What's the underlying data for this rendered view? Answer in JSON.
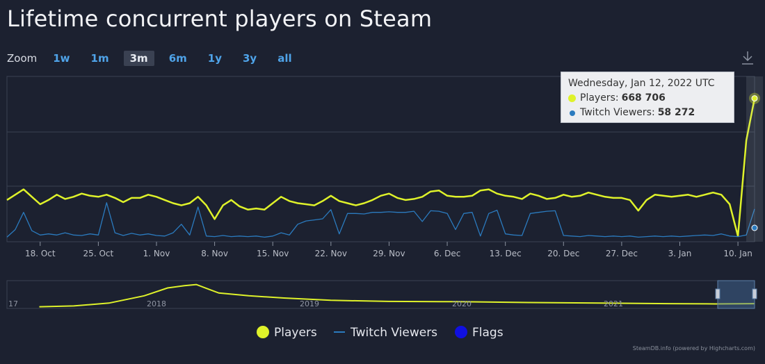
{
  "title": "Lifetime concurrent players on Steam",
  "zoom": {
    "label": "Zoom",
    "buttons": [
      "1w",
      "1m",
      "3m",
      "6m",
      "1y",
      "3y",
      "all"
    ],
    "active": "3m"
  },
  "download_icon": "download-icon",
  "tooltip": {
    "date": "Wednesday, Jan 12, 2022 UTC",
    "players_label": "Players:",
    "players_value": "668 706",
    "twitch_label": "Twitch Viewers:",
    "twitch_value": "58 272"
  },
  "credit": "SteamDB.info (powered by Highcharts.com)",
  "colors": {
    "players": "#dff22a",
    "twitch": "#2b7bbf",
    "flags": "#1010e0",
    "background": "#1c2130",
    "grid": "#3a4152"
  },
  "chart_data": [
    {
      "type": "line",
      "title": "Lifetime concurrent players on Steam",
      "x_axis": {
        "type": "date",
        "range": [
          "2021-10-14",
          "2022-01-12"
        ],
        "ticks": [
          {
            "date": "2021-10-18",
            "label": "18. Oct"
          },
          {
            "date": "2021-10-25",
            "label": "25. Oct"
          },
          {
            "date": "2021-11-01",
            "label": "1. Nov"
          },
          {
            "date": "2021-11-08",
            "label": "8. Nov"
          },
          {
            "date": "2021-11-15",
            "label": "15. Nov"
          },
          {
            "date": "2021-11-22",
            "label": "22. Nov"
          },
          {
            "date": "2021-11-29",
            "label": "29. Nov"
          },
          {
            "date": "2021-12-06",
            "label": "6. Dec"
          },
          {
            "date": "2021-12-13",
            "label": "13. Dec"
          },
          {
            "date": "2021-12-20",
            "label": "20. Dec"
          },
          {
            "date": "2021-12-27",
            "label": "27. Dec"
          },
          {
            "date": "2022-01-03",
            "label": "3. Jan"
          },
          {
            "date": "2022-01-10",
            "label": "10. Jan"
          }
        ]
      },
      "grid": true,
      "legend_position": "bottom-center",
      "series": [
        {
          "name": "Players",
          "color": "#dff22a",
          "points": [
            [
              "2021-10-14",
              190000
            ],
            [
              "2021-10-15",
              215000
            ],
            [
              "2021-10-16",
              240000
            ],
            [
              "2021-10-17",
              205000
            ],
            [
              "2021-10-18",
              170000
            ],
            [
              "2021-10-19",
              190000
            ],
            [
              "2021-10-20",
              215000
            ],
            [
              "2021-10-21",
              195000
            ],
            [
              "2021-10-22",
              205000
            ],
            [
              "2021-10-23",
              220000
            ],
            [
              "2021-10-24",
              210000
            ],
            [
              "2021-10-25",
              205000
            ],
            [
              "2021-10-26",
              215000
            ],
            [
              "2021-10-27",
              200000
            ],
            [
              "2021-10-28",
              180000
            ],
            [
              "2021-10-29",
              200000
            ],
            [
              "2021-10-30",
              200000
            ],
            [
              "2021-10-31",
              215000
            ],
            [
              "2021-11-01",
              205000
            ],
            [
              "2021-11-02",
              190000
            ],
            [
              "2021-11-03",
              175000
            ],
            [
              "2021-11-04",
              165000
            ],
            [
              "2021-11-05",
              175000
            ],
            [
              "2021-11-06",
              205000
            ],
            [
              "2021-11-07",
              165000
            ],
            [
              "2021-11-08",
              100000
            ],
            [
              "2021-11-09",
              165000
            ],
            [
              "2021-11-10",
              190000
            ],
            [
              "2021-11-11",
              160000
            ],
            [
              "2021-11-12",
              145000
            ],
            [
              "2021-11-13",
              150000
            ],
            [
              "2021-11-14",
              145000
            ],
            [
              "2021-11-15",
              175000
            ],
            [
              "2021-11-16",
              205000
            ],
            [
              "2021-11-17",
              185000
            ],
            [
              "2021-11-18",
              175000
            ],
            [
              "2021-11-19",
              170000
            ],
            [
              "2021-11-20",
              165000
            ],
            [
              "2021-11-21",
              185000
            ],
            [
              "2021-11-22",
              210000
            ],
            [
              "2021-11-23",
              185000
            ],
            [
              "2021-11-24",
              175000
            ],
            [
              "2021-11-25",
              165000
            ],
            [
              "2021-11-26",
              175000
            ],
            [
              "2021-11-27",
              190000
            ],
            [
              "2021-11-28",
              210000
            ],
            [
              "2021-11-29",
              220000
            ],
            [
              "2021-11-30",
              200000
            ],
            [
              "2021-12-01",
              190000
            ],
            [
              "2021-12-02",
              195000
            ],
            [
              "2021-12-03",
              205000
            ],
            [
              "2021-12-04",
              230000
            ],
            [
              "2021-12-05",
              235000
            ],
            [
              "2021-12-06",
              210000
            ],
            [
              "2021-12-07",
              205000
            ],
            [
              "2021-12-08",
              205000
            ],
            [
              "2021-12-09",
              210000
            ],
            [
              "2021-12-10",
              235000
            ],
            [
              "2021-12-11",
              240000
            ],
            [
              "2021-12-12",
              220000
            ],
            [
              "2021-12-13",
              210000
            ],
            [
              "2021-12-14",
              205000
            ],
            [
              "2021-12-15",
              195000
            ],
            [
              "2021-12-16",
              220000
            ],
            [
              "2021-12-17",
              210000
            ],
            [
              "2021-12-18",
              195000
            ],
            [
              "2021-12-19",
              200000
            ],
            [
              "2021-12-20",
              215000
            ],
            [
              "2021-12-21",
              205000
            ],
            [
              "2021-12-22",
              210000
            ],
            [
              "2021-12-23",
              225000
            ],
            [
              "2021-12-24",
              215000
            ],
            [
              "2021-12-25",
              205000
            ],
            [
              "2021-12-26",
              200000
            ],
            [
              "2021-12-27",
              200000
            ],
            [
              "2021-12-28",
              190000
            ],
            [
              "2021-12-29",
              140000
            ],
            [
              "2021-12-30",
              190000
            ],
            [
              "2021-12-31",
              215000
            ],
            [
              "2022-01-01",
              210000
            ],
            [
              "2022-01-02",
              205000
            ],
            [
              "2022-01-03",
              210000
            ],
            [
              "2022-01-04",
              215000
            ],
            [
              "2022-01-05",
              205000
            ],
            [
              "2022-01-06",
              215000
            ],
            [
              "2022-01-07",
              225000
            ],
            [
              "2022-01-08",
              215000
            ],
            [
              "2022-01-09",
              170000
            ],
            [
              "2022-01-10",
              20000
            ],
            [
              "2022-01-11",
              470000
            ],
            [
              "2022-01-12",
              668706
            ]
          ]
        },
        {
          "name": "Twitch Viewers",
          "color": "#2b7bbf",
          "points": [
            [
              "2021-10-14",
              6000
            ],
            [
              "2021-10-15",
              20000
            ],
            [
              "2021-10-16",
              52000
            ],
            [
              "2021-10-17",
              18000
            ],
            [
              "2021-10-18",
              10000
            ],
            [
              "2021-10-19",
              12000
            ],
            [
              "2021-10-20",
              10000
            ],
            [
              "2021-10-21",
              14000
            ],
            [
              "2021-10-22",
              10000
            ],
            [
              "2021-10-23",
              9000
            ],
            [
              "2021-10-24",
              12000
            ],
            [
              "2021-10-25",
              10000
            ],
            [
              "2021-10-26",
              70000
            ],
            [
              "2021-10-27",
              14000
            ],
            [
              "2021-10-28",
              9000
            ],
            [
              "2021-10-29",
              13000
            ],
            [
              "2021-10-30",
              10000
            ],
            [
              "2021-10-31",
              12000
            ],
            [
              "2021-11-01",
              9000
            ],
            [
              "2021-11-02",
              8000
            ],
            [
              "2021-11-03",
              14000
            ],
            [
              "2021-11-04",
              30000
            ],
            [
              "2021-11-05",
              10000
            ],
            [
              "2021-11-06",
              62000
            ],
            [
              "2021-11-07",
              8000
            ],
            [
              "2021-11-08",
              7000
            ],
            [
              "2021-11-09",
              9000
            ],
            [
              "2021-11-10",
              7000
            ],
            [
              "2021-11-11",
              8000
            ],
            [
              "2021-11-12",
              7000
            ],
            [
              "2021-11-13",
              8000
            ],
            [
              "2021-11-14",
              6000
            ],
            [
              "2021-11-15",
              8000
            ],
            [
              "2021-11-16",
              14000
            ],
            [
              "2021-11-17",
              10000
            ],
            [
              "2021-11-18",
              30000
            ],
            [
              "2021-11-19",
              36000
            ],
            [
              "2021-11-20",
              38000
            ],
            [
              "2021-11-21",
              40000
            ],
            [
              "2021-11-22",
              57000
            ],
            [
              "2021-11-23",
              12000
            ],
            [
              "2021-11-24",
              50000
            ],
            [
              "2021-11-25",
              50000
            ],
            [
              "2021-11-26",
              49000
            ],
            [
              "2021-11-27",
              52000
            ],
            [
              "2021-11-28",
              52000
            ],
            [
              "2021-11-29",
              53000
            ],
            [
              "2021-11-30",
              52000
            ],
            [
              "2021-12-01",
              52000
            ],
            [
              "2021-12-02",
              54000
            ],
            [
              "2021-12-03",
              35000
            ],
            [
              "2021-12-04",
              55000
            ],
            [
              "2021-12-05",
              54000
            ],
            [
              "2021-12-06",
              50000
            ],
            [
              "2021-12-07",
              20000
            ],
            [
              "2021-12-08",
              50000
            ],
            [
              "2021-12-09",
              52000
            ],
            [
              "2021-12-10",
              8000
            ],
            [
              "2021-12-11",
              50000
            ],
            [
              "2021-12-12",
              56000
            ],
            [
              "2021-12-13",
              12000
            ],
            [
              "2021-12-14",
              10000
            ],
            [
              "2021-12-15",
              9000
            ],
            [
              "2021-12-16",
              50000
            ],
            [
              "2021-12-17",
              52000
            ],
            [
              "2021-12-18",
              54000
            ],
            [
              "2021-12-19",
              55000
            ],
            [
              "2021-12-20",
              9000
            ],
            [
              "2021-12-21",
              8000
            ],
            [
              "2021-12-22",
              7000
            ],
            [
              "2021-12-23",
              9000
            ],
            [
              "2021-12-24",
              8000
            ],
            [
              "2021-12-25",
              7000
            ],
            [
              "2021-12-26",
              8000
            ],
            [
              "2021-12-27",
              7000
            ],
            [
              "2021-12-28",
              8000
            ],
            [
              "2021-12-29",
              6000
            ],
            [
              "2021-12-30",
              7000
            ],
            [
              "2021-12-31",
              8000
            ],
            [
              "2022-01-01",
              7000
            ],
            [
              "2022-01-02",
              8000
            ],
            [
              "2022-01-03",
              7000
            ],
            [
              "2022-01-04",
              8000
            ],
            [
              "2022-01-05",
              9000
            ],
            [
              "2022-01-06",
              10000
            ],
            [
              "2022-01-07",
              9000
            ],
            [
              "2022-01-08",
              12000
            ],
            [
              "2022-01-09",
              8000
            ],
            [
              "2022-01-10",
              7000
            ],
            [
              "2022-01-11",
              10000
            ],
            [
              "2022-01-12",
              58272
            ]
          ]
        }
      ]
    },
    {
      "type": "area",
      "role": "navigator",
      "x_axis": {
        "ticks": [
          "17",
          "2018",
          "2019",
          "2020",
          "2021"
        ]
      },
      "series": [
        {
          "name": "Players",
          "color": "#dff22a",
          "points": [
            [
              "2016-12-01",
              5000
            ],
            [
              "2017-03-01",
              20000
            ],
            [
              "2017-06-01",
              70000
            ],
            [
              "2017-09-01",
              200000
            ],
            [
              "2017-11-01",
              340000
            ],
            [
              "2017-12-15",
              380000
            ],
            [
              "2018-01-15",
              400000
            ],
            [
              "2018-02-15",
              320000
            ],
            [
              "2018-03-15",
              250000
            ],
            [
              "2018-06-01",
              200000
            ],
            [
              "2018-09-01",
              160000
            ],
            [
              "2019-01-01",
              120000
            ],
            [
              "2019-06-01",
              100000
            ],
            [
              "2019-12-01",
              95000
            ],
            [
              "2020-06-01",
              80000
            ],
            [
              "2020-12-01",
              70000
            ],
            [
              "2021-06-01",
              60000
            ],
            [
              "2021-10-01",
              55000
            ],
            [
              "2022-01-12",
              60000
            ]
          ]
        }
      ]
    }
  ],
  "legend": {
    "items": [
      {
        "name": "Players",
        "color": "#dff22a",
        "marker": "dot"
      },
      {
        "name": "Twitch Viewers",
        "color": "#2b7bbf",
        "marker": "line"
      },
      {
        "name": "Flags",
        "color": "#1010e0",
        "marker": "dot"
      }
    ]
  }
}
